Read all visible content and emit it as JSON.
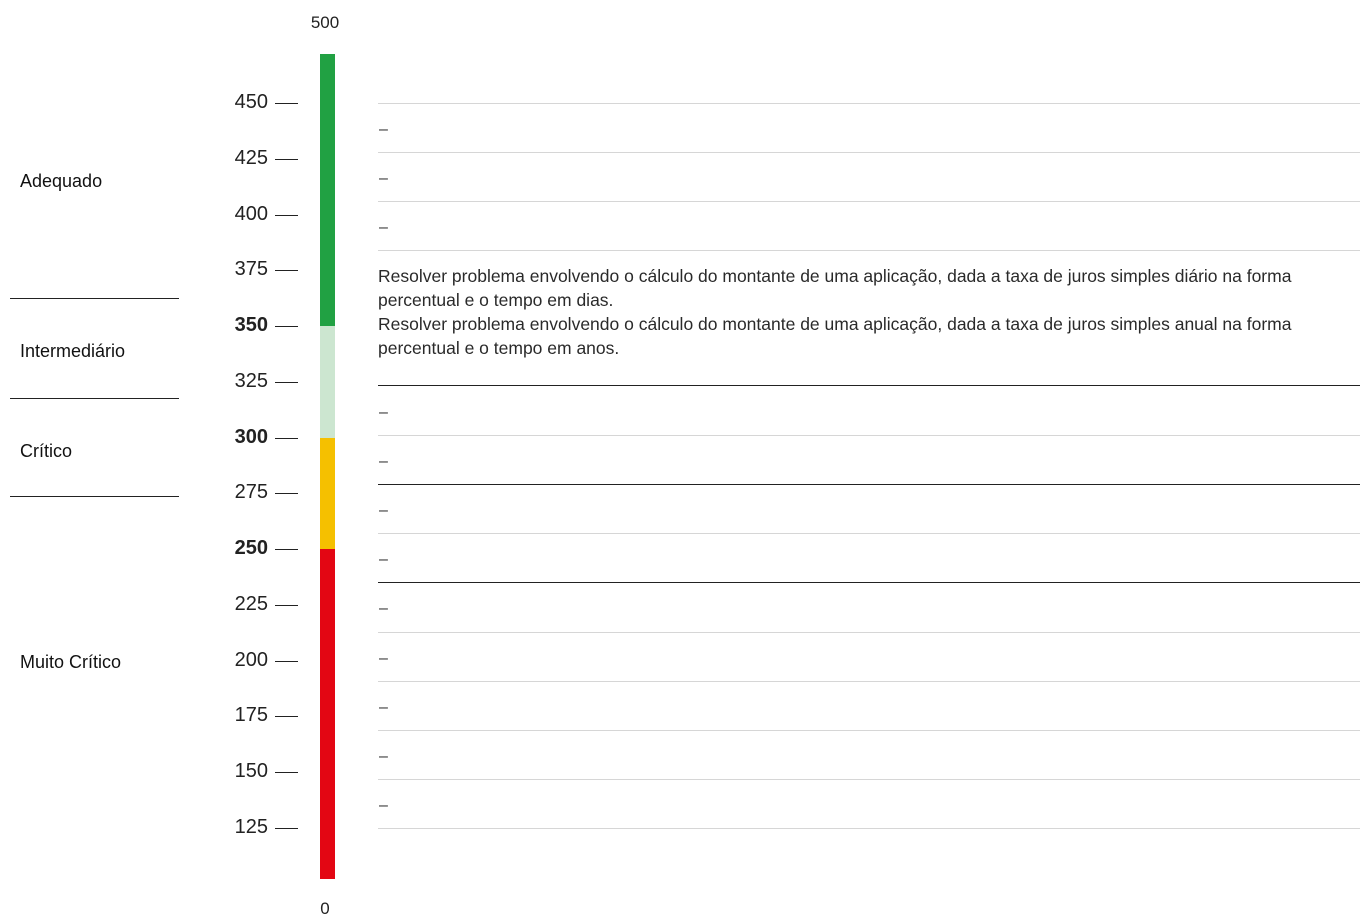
{
  "scale": {
    "max_label": "500",
    "min_label": "0",
    "ticks": [
      {
        "label": "450",
        "value": 450,
        "bold": false
      },
      {
        "label": "425",
        "value": 425,
        "bold": false
      },
      {
        "label": "400",
        "value": 400,
        "bold": false
      },
      {
        "label": "375",
        "value": 375,
        "bold": false
      },
      {
        "label": "350",
        "value": 350,
        "bold": true
      },
      {
        "label": "325",
        "value": 325,
        "bold": false
      },
      {
        "label": "300",
        "value": 300,
        "bold": true
      },
      {
        "label": "275",
        "value": 275,
        "bold": false
      },
      {
        "label": "250",
        "value": 250,
        "bold": true
      },
      {
        "label": "225",
        "value": 225,
        "bold": false
      },
      {
        "label": "200",
        "value": 200,
        "bold": false
      },
      {
        "label": "175",
        "value": 175,
        "bold": false
      },
      {
        "label": "150",
        "value": 150,
        "bold": false
      },
      {
        "label": "125",
        "value": 125,
        "bold": false
      }
    ],
    "bands": [
      {
        "from": 350,
        "to": 500,
        "color": "#21a143"
      },
      {
        "from": 300,
        "to": 350,
        "color": "#cce6d0"
      },
      {
        "from": 250,
        "to": 300,
        "color": "#f5c000"
      },
      {
        "from": 0,
        "to": 250,
        "color": "#e30613"
      }
    ]
  },
  "levels": {
    "adequado": "Adequado",
    "intermediario": "Intermediário",
    "critico": "Crítico",
    "muito_critico": "Muito Crítico"
  },
  "rows": {
    "row_425_450": "–",
    "row_400_425": "–",
    "row_375_400": "–",
    "row_325_350": "–",
    "row_300_325": "–",
    "row_275_300": "–",
    "row_250_275": "–",
    "row_225_250": "–",
    "row_200_225": "–",
    "row_175_200": "–",
    "row_150_175": "–",
    "row_125_150": "–"
  },
  "descriptors": [
    "Resolver problema envolvendo o cálculo do montante de uma aplicação, dada a taxa de juros simples diário na forma percentual e o tempo em dias.",
    "Resolver problema envolvendo o cálculo do montante de uma aplicação, dada a taxa de juros simples anual na forma percentual e o tempo em anos."
  ]
}
